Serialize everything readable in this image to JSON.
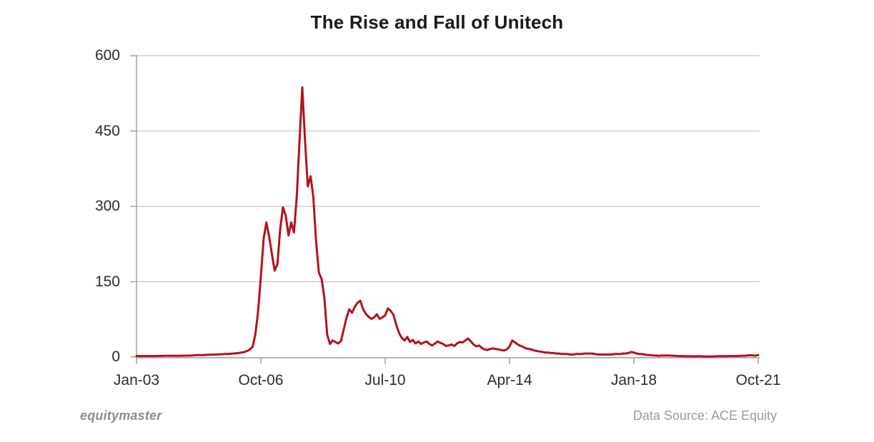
{
  "title": "The Rise and Fall of Unitech",
  "footer": {
    "brand": "equitymaster",
    "source": "Data Source: ACE Equity"
  },
  "chart_data": {
    "type": "line",
    "title": "The Rise and Fall of Unitech",
    "series_name": "Unitech share price",
    "xlabel": "",
    "ylabel": "",
    "x_unit": "monthly, Jan-2003 to Oct-2021",
    "x_tick_labels": [
      "Jan-03",
      "Oct-06",
      "Jul-10",
      "Apr-14",
      "Jan-18",
      "Oct-21"
    ],
    "x_tick_month_indices": [
      0,
      45,
      90,
      135,
      180,
      225
    ],
    "y_ticks": [
      0,
      150,
      300,
      450,
      600
    ],
    "ylim": [
      0,
      600
    ],
    "grid": true,
    "legend": "none",
    "line_color": "#b3121a",
    "grid_color": "#c7c7c7",
    "axis_color": "#9b9b9b",
    "values": [
      2,
      2,
      2,
      2,
      2,
      2,
      2,
      2,
      2.2,
      2.2,
      2.4,
      2.5,
      2.5,
      2.5,
      2.5,
      2.6,
      2.6,
      2.7,
      2.8,
      2.8,
      3,
      3.5,
      4,
      4,
      4,
      4.2,
      4.5,
      4.5,
      4.8,
      5,
      5.5,
      5.5,
      6,
      6,
      6.5,
      7,
      7.5,
      8,
      9,
      10,
      12,
      15,
      20,
      45,
      90,
      160,
      235,
      268,
      240,
      205,
      172,
      185,
      255,
      298,
      282,
      242,
      268,
      248,
      320,
      430,
      537,
      430,
      340,
      360,
      318,
      230,
      168,
      155,
      118,
      45,
      26,
      33,
      30,
      27,
      32,
      55,
      78,
      95,
      88,
      100,
      108,
      112,
      95,
      86,
      80,
      76,
      79,
      85,
      76,
      79,
      83,
      97,
      92,
      84,
      64,
      48,
      38,
      33,
      40,
      30,
      34,
      27,
      31,
      26,
      29,
      31,
      26,
      23,
      27,
      31,
      28,
      26,
      22,
      23,
      25,
      22,
      27,
      30,
      29,
      33,
      37,
      31,
      25,
      21,
      23,
      18,
      15,
      14,
      16,
      17,
      16,
      15,
      14,
      13,
      15,
      21,
      33,
      29,
      25,
      22,
      20,
      17,
      16,
      15,
      13,
      12,
      11,
      10,
      9,
      9,
      8,
      8,
      7,
      7,
      6,
      6,
      6,
      5,
      5,
      6,
      6,
      6,
      7,
      7,
      7,
      7,
      6,
      5,
      5,
      5,
      5,
      5,
      5,
      6,
      6,
      6,
      7,
      7,
      8,
      10,
      9,
      7,
      6,
      6,
      5,
      4,
      4,
      3,
      3,
      2.5,
      3,
      3,
      3,
      3,
      2.5,
      2.5,
      2,
      2,
      1.8,
      1.6,
      1.5,
      1.4,
      1.4,
      1.5,
      1.5,
      1.3,
      1,
      1.1,
      1.2,
      1.4,
      1.5,
      1.8,
      1.8,
      1.7,
      1.8,
      2,
      2,
      2,
      2.2,
      2.4,
      2.6,
      3,
      3.5,
      3.2,
      2.8,
      4
    ]
  }
}
